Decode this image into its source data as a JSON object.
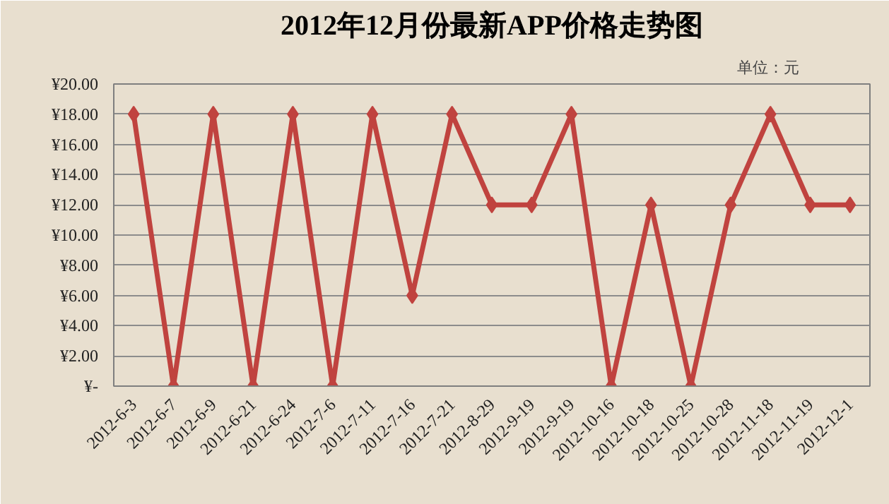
{
  "chart_data": {
    "type": "line",
    "title": "2012年12月份最新APP价格走势图",
    "annotations": [
      "单位：元"
    ],
    "categories": [
      "2012-6-3",
      "2012-6-7",
      "2012-6-9",
      "2012-6-21",
      "2012-6-24",
      "2012-7-6",
      "2012-7-11",
      "2012-7-16",
      "2012-7-21",
      "2012-8-29",
      "2012-9-19",
      "2012-9-19",
      "2012-10-16",
      "2012-10-18",
      "2012-10-25",
      "2012-10-28",
      "2012-11-18",
      "2012-11-19",
      "2012-12-1"
    ],
    "series": [
      {
        "color": "#c0433f",
        "values": [
          18,
          0,
          18,
          0,
          18,
          0,
          18,
          6,
          18,
          12,
          12,
          18,
          0,
          12,
          0,
          12,
          18,
          12,
          12
        ]
      }
    ],
    "ylim": [
      0,
      20
    ],
    "yticks": [
      {
        "value": 0,
        "label": "¥-"
      },
      {
        "value": 2,
        "label": "¥2.00"
      },
      {
        "value": 4,
        "label": "¥4.00"
      },
      {
        "value": 6,
        "label": "¥6.00"
      },
      {
        "value": 8,
        "label": "¥8.00"
      },
      {
        "value": 10,
        "label": "¥10.00"
      },
      {
        "value": 12,
        "label": "¥12.00"
      },
      {
        "value": 14,
        "label": "¥14.00"
      },
      {
        "value": 16,
        "label": "¥16.00"
      },
      {
        "value": 18,
        "label": "¥18.00"
      },
      {
        "value": 20,
        "label": "¥20.00"
      }
    ],
    "grid": "y",
    "marker": "diamond",
    "line_style": "solid"
  }
}
